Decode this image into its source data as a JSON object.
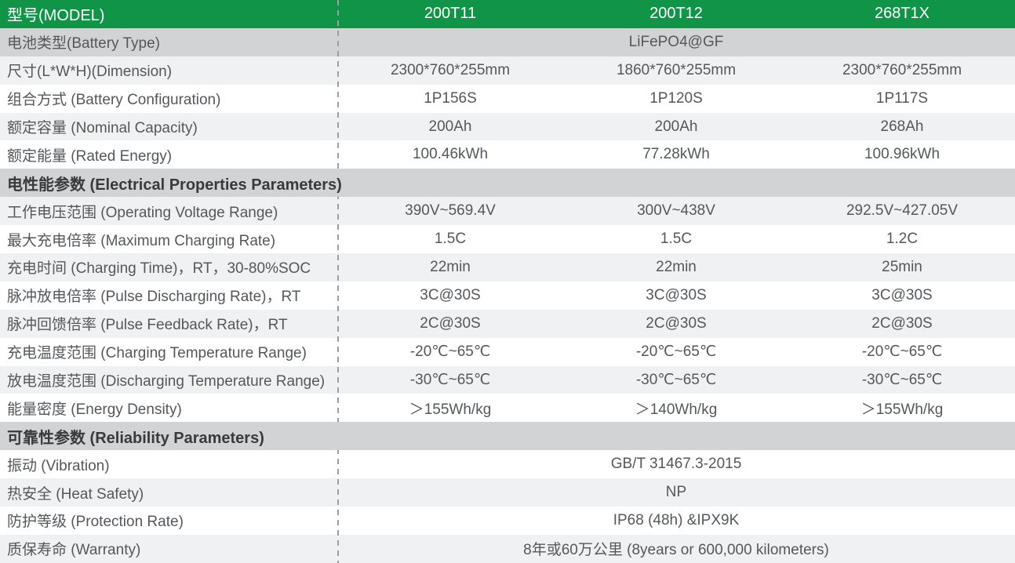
{
  "colors": {
    "header_green": "#109447",
    "section_gray": "#d2d3d5",
    "row_light_gray": "#f0f1f3",
    "row_white": "#ffffff",
    "divider_gray": "#9e9fa2",
    "label_text": "#55575b",
    "section_text": "#3a3a3c",
    "header_text": "#ffffff"
  },
  "table": {
    "header": {
      "label": "型号(MODEL)",
      "models": [
        "200T11",
        "200T12",
        "268T1X"
      ]
    },
    "rows": [
      {
        "label": "电池类型(Battery Type)",
        "span_value": "LiFePO4@GF"
      },
      {
        "label": "尺寸(L*W*H)(Dimension)",
        "values": [
          "2300*760*255mm",
          "1860*760*255mm",
          "2300*760*255mm"
        ]
      },
      {
        "label": "组合方式 (Battery Configuration)",
        "values": [
          "1P156S",
          "1P120S",
          "1P117S"
        ]
      },
      {
        "label": "额定容量 (Nominal Capacity)",
        "values": [
          "200Ah",
          "200Ah",
          "268Ah"
        ]
      },
      {
        "label": "额定能量 (Rated Energy)",
        "values": [
          "100.46kWh",
          "77.28kWh",
          "100.96kWh"
        ]
      },
      {
        "label": "电性能参数 (Electrical Properties Parameters)",
        "section": true
      },
      {
        "label": "工作电压范围 (Operating Voltage Range)",
        "values": [
          "390V~569.4V",
          "300V~438V",
          "292.5V~427.05V"
        ]
      },
      {
        "label": "最大充电倍率 (Maximum Charging Rate)",
        "values": [
          "1.5C",
          "1.5C",
          "1.2C"
        ]
      },
      {
        "label": "充电时间 (Charging Time)，RT，30-80%SOC",
        "values": [
          "22min",
          "22min",
          "25min"
        ]
      },
      {
        "label": "脉冲放电倍率 (Pulse Discharging Rate)，RT",
        "values": [
          "3C@30S",
          "3C@30S",
          "3C@30S"
        ]
      },
      {
        "label": "脉冲回馈倍率 (Pulse Feedback Rate)，RT",
        "values": [
          "2C@30S",
          "2C@30S",
          "2C@30S"
        ]
      },
      {
        "label": "充电温度范围 (Charging Temperature Range)",
        "values": [
          "-20℃~65℃",
          "-20℃~65℃",
          "-20℃~65℃"
        ]
      },
      {
        "label": "放电温度范围 (Discharging Temperature Range)",
        "values": [
          "-30℃~65℃",
          "-30℃~65℃",
          "-30℃~65℃"
        ]
      },
      {
        "label": "能量密度 (Energy Density)",
        "values": [
          "＞155Wh/kg",
          "＞140Wh/kg",
          "＞155Wh/kg"
        ]
      },
      {
        "label": "可靠性参数 (Reliability Parameters)",
        "section": true
      },
      {
        "label": "振动 (Vibration)",
        "span_value": "GB/T 31467.3-2015"
      },
      {
        "label": "热安全 (Heat Safety)",
        "span_value": "NP"
      },
      {
        "label": "防护等级 (Protection Rate)",
        "span_value": "IP68 (48h) &IPX9K"
      },
      {
        "label": "质保寿命 (Warranty)",
        "span_value": "8年或60万公里 (8years or 600,000 kilometers)"
      }
    ]
  }
}
